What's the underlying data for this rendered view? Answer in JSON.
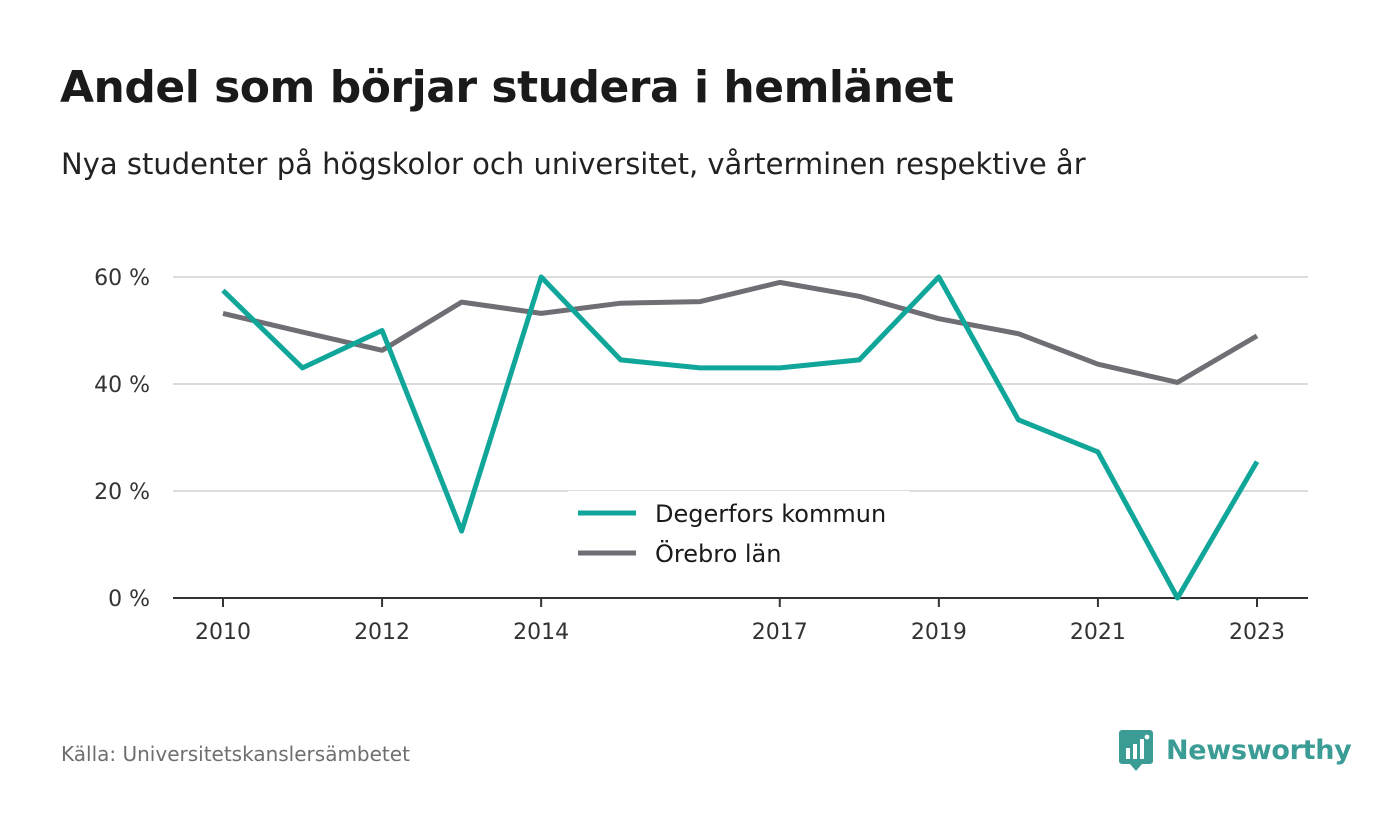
{
  "header": {
    "title": "Andel som börjar studera i hemlänet",
    "subtitle": "Nya studenter på högskolor och universitet, vårterminen respektive år"
  },
  "footer": {
    "source": "Källa: Universitetskanslersämbetet",
    "brand": "Newsworthy",
    "brand_color": "#3a9c94"
  },
  "chart_data": {
    "type": "line",
    "x": [
      2010,
      2011,
      2012,
      2013,
      2014,
      2015,
      2016,
      2017,
      2018,
      2019,
      2020,
      2021,
      2022,
      2023
    ],
    "x_tick_values": [
      2010,
      2012,
      2014,
      2017,
      2019,
      2021,
      2023
    ],
    "x_tick_labels": [
      "2010",
      "2012",
      "2014",
      "2017",
      "2019",
      "2021",
      "2023"
    ],
    "y_tick_values": [
      0,
      20,
      40,
      60
    ],
    "y_tick_labels": [
      "0 %",
      "20 %",
      "40 %",
      "60 %"
    ],
    "ylim": [
      0,
      60
    ],
    "grid": true,
    "legend_position": "center",
    "series": [
      {
        "name": "Degerfors kommun",
        "color": "#10a69a",
        "values": [
          57.5,
          43,
          50,
          12.5,
          60,
          44.5,
          43,
          43,
          44.5,
          60,
          33.3,
          27.3,
          0,
          25.5
        ]
      },
      {
        "name": "Örebro län",
        "color": "#6f6e75",
        "values": [
          53.2,
          49.7,
          46.3,
          55.3,
          53.2,
          55.1,
          55.4,
          59,
          56.4,
          52.2,
          49.4,
          43.7,
          40.3,
          49
        ]
      }
    ]
  }
}
